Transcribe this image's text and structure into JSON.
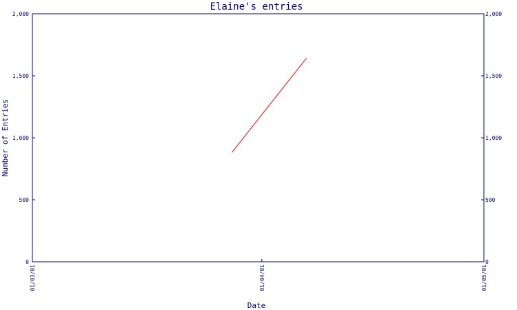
{
  "chart_data": {
    "type": "line",
    "title": "Elaine's entries",
    "xlabel": "Date",
    "ylabel": "Number of Entries",
    "x_ticks": [
      "01/03/01",
      "01/04/01",
      "01/05/01"
    ],
    "y_ticks": [
      "0",
      "500",
      "1,000",
      "1,500",
      "2,000"
    ],
    "y_tick_values": [
      0,
      500,
      1000,
      1500,
      2000
    ],
    "ylim": [
      0,
      2000
    ],
    "xlim": [
      "01/03/01",
      "01/05/01"
    ],
    "right_axis": true,
    "grid": false,
    "series": [
      {
        "color": "#ff0000",
        "points": [
          {
            "x": "01/03/28",
            "y": 885
          },
          {
            "x": "01/04/07",
            "y": 1640
          }
        ]
      }
    ]
  }
}
